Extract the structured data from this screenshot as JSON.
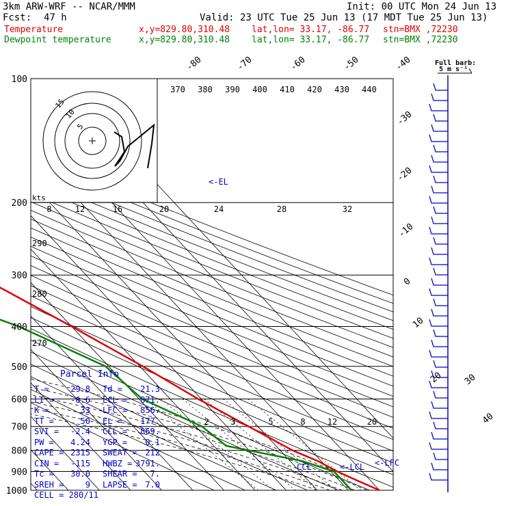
{
  "header": {
    "model": "3km ARW-WRF -- NCAR/MMM",
    "init": "Init: 00 UTC Mon 24 Jun 13",
    "fcst_label": "Fcst:",
    "fcst_value": "47 h",
    "valid": "Valid: 23 UTC Tue 25 Jun 13 (17 MDT Tue 25 Jun 13)",
    "series": [
      {
        "name": "Temperature",
        "coords": "x,y=829.80,310.48",
        "latlon": "lat,lon= 33.17, -86.77",
        "stn": "stn=BMX ,72230",
        "color": "#e00000"
      },
      {
        "name": "Dewpoint temperature",
        "coords": "x,y=829.80,310.48",
        "latlon": "lat,lon= 33.17, -86.77",
        "stn": "stn=BMX ,72230",
        "color": "#008000"
      }
    ]
  },
  "chart_data": {
    "type": "line",
    "pressure_levels": [
      100,
      200,
      300,
      400,
      500,
      600,
      700,
      800,
      900,
      1000
    ],
    "pressure_tick_labels": [
      "100",
      "200",
      "300",
      "400",
      "500",
      "600",
      "700",
      "800",
      "900",
      "1000"
    ],
    "temp_ticks_top": [
      "-80",
      "-70",
      "-60",
      "-50",
      "-40"
    ],
    "temp_ticks_right": [
      "-30",
      "-20",
      "-10",
      "0",
      "10",
      "20",
      "30",
      "40"
    ],
    "theta_e_labels": [
      "370",
      "380",
      "390",
      "400",
      "410",
      "420",
      "430",
      "440"
    ],
    "mixing_ratio_labels": [
      "2",
      "3",
      "5",
      "8",
      "12",
      "20"
    ],
    "dry_adiabat_labels": [
      "290",
      "280",
      "270"
    ],
    "mixing_ratio_axis_labels": [
      "8",
      "12",
      "16",
      "20",
      "24",
      "28",
      "32"
    ],
    "series": [
      {
        "name": "Temperature",
        "color": "#e00000",
        "points": [
          [
            100,
            -68
          ],
          [
            120,
            -64
          ],
          [
            140,
            -60
          ],
          [
            170,
            -58
          ],
          [
            190,
            -56
          ],
          [
            200,
            -54
          ],
          [
            250,
            -45
          ],
          [
            300,
            -35
          ],
          [
            400,
            -20
          ],
          [
            500,
            -9
          ],
          [
            600,
            -1
          ],
          [
            700,
            7
          ],
          [
            800,
            14
          ],
          [
            850,
            19
          ],
          [
            900,
            22
          ],
          [
            950,
            26
          ],
          [
            1000,
            30
          ]
        ]
      },
      {
        "name": "Dewpoint temperature",
        "color": "#008000",
        "points": [
          [
            100,
            -83
          ],
          [
            140,
            -80
          ],
          [
            180,
            -75
          ],
          [
            200,
            -76
          ],
          [
            250,
            -69
          ],
          [
            300,
            -56
          ],
          [
            350,
            -51
          ],
          [
            400,
            -37
          ],
          [
            500,
            -21
          ],
          [
            600,
            -19
          ],
          [
            700,
            -8
          ],
          [
            780,
            -6
          ],
          [
            850,
            14
          ],
          [
            900,
            21
          ],
          [
            950,
            21
          ],
          [
            1000,
            21
          ]
        ]
      }
    ],
    "parcel_info": {
      "title": "Parcel Info",
      "rows": [
        [
          "T",
          "29.8",
          "Td",
          "21.3"
        ],
        [
          "LI",
          "-6.6",
          "LCL",
          "871."
        ],
        [
          "K",
          "33",
          "LFC",
          "856."
        ],
        [
          "TT",
          "50",
          "EL",
          "177."
        ],
        [
          "SVI",
          "-2.4",
          "CCL",
          "869."
        ],
        [
          "PW",
          "4.24",
          "YGP",
          "0.1"
        ],
        [
          "CAPE",
          "2315",
          "SWEAT",
          "212"
        ],
        [
          "CIN",
          "-115",
          "HWBZ",
          "3791."
        ],
        [
          "Tc",
          "30.0",
          "SHEAR",
          "7."
        ],
        [
          "SREH",
          "9",
          "LAPSE",
          "7.0"
        ],
        [
          "CELL",
          "280/11",
          "",
          ""
        ]
      ]
    },
    "annotations": {
      "el": "<-EL",
      "ccl": "CCL",
      "lcl": "<-LCL",
      "lfc": "<-LFC"
    },
    "hodograph": {
      "unit": "kts",
      "ring_labels": [
        "5",
        "10",
        "15"
      ]
    },
    "wind_legend": {
      "title": "Full barb:",
      "value": "5 m s⁻¹"
    }
  }
}
